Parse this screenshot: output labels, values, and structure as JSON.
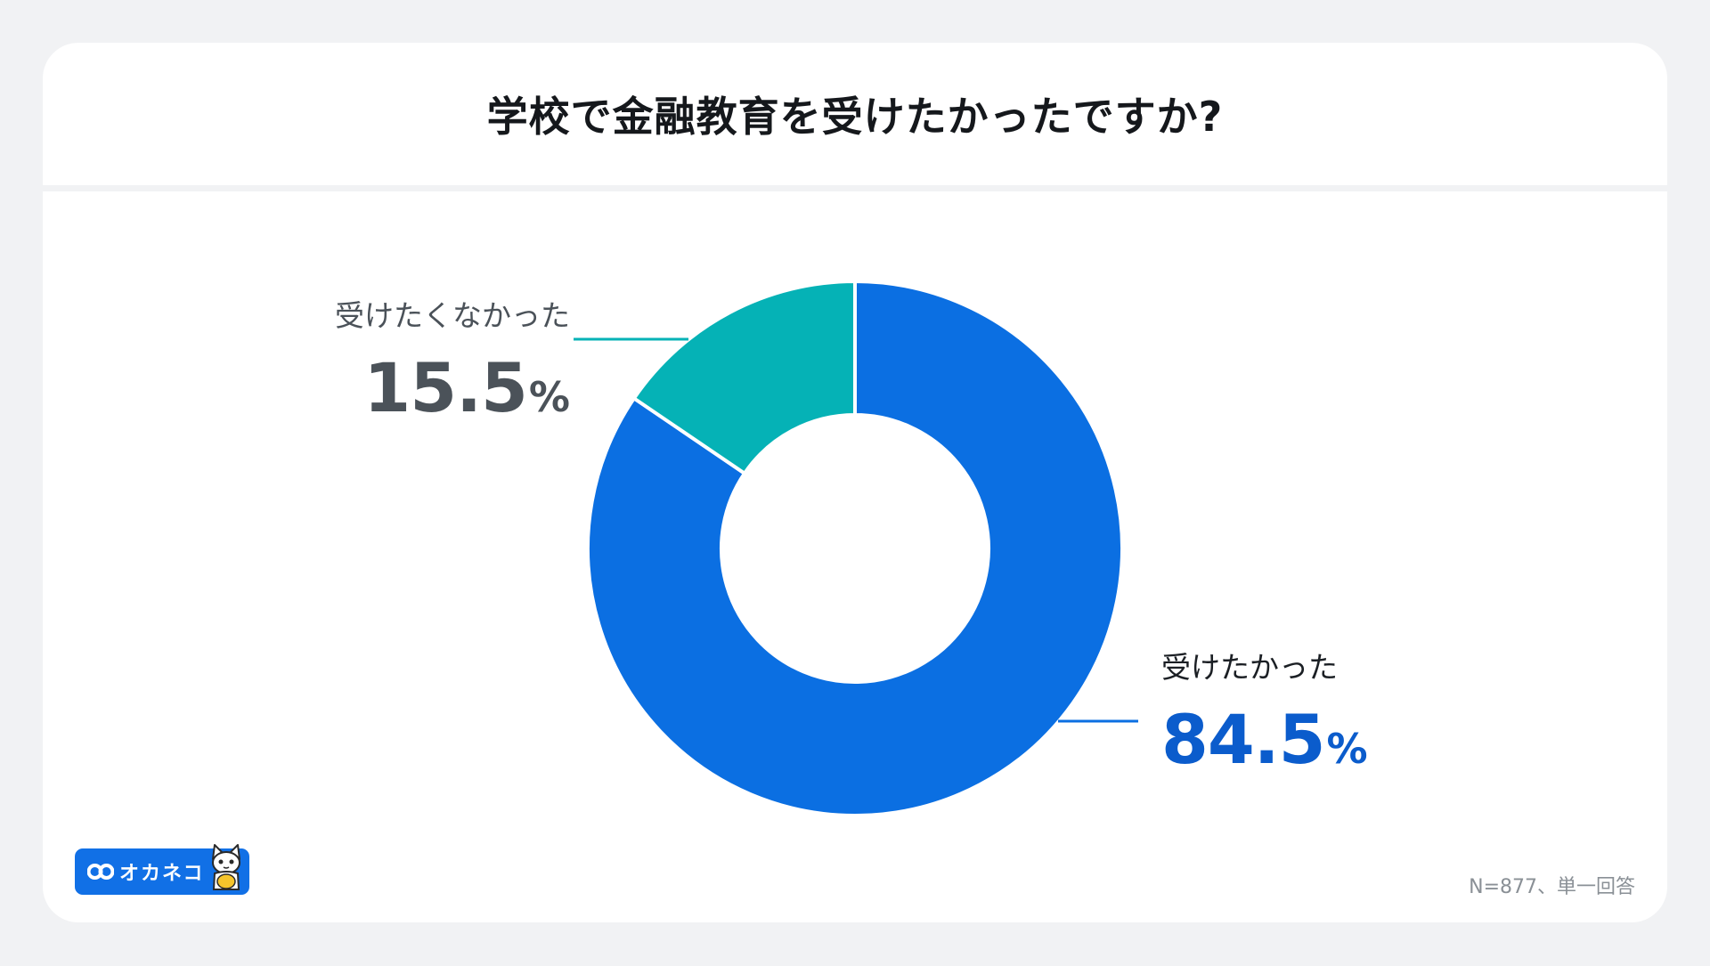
{
  "title": "学校で金融教育を受けたかったですか?",
  "footnote": "N=877、単一回答",
  "logo": {
    "text": "オカネコ",
    "icon": "cat-mascot-icon"
  },
  "colors": {
    "background": "#f1f2f4",
    "card": "#ffffff",
    "want": "#0b6fe2",
    "did_not_want": "#05b2b6",
    "want_value_text": "#0b5ccc",
    "did_not_want_value_text": "#4b5259",
    "logo_blue": "#1170e6"
  },
  "chart_data": {
    "type": "pie",
    "style": "donut",
    "title": "学校で金融教育を受けたかったですか?",
    "slices": [
      {
        "label": "受けたかった",
        "value": 84.5,
        "display": "84.5",
        "unit": "%",
        "color": "#0b6fe2"
      },
      {
        "label": "受けたくなかった",
        "value": 15.5,
        "display": "15.5",
        "unit": "%",
        "color": "#05b2b6"
      }
    ],
    "start": "top",
    "direction": "clockwise",
    "legend": "none",
    "labels": "outside with leader lines"
  }
}
